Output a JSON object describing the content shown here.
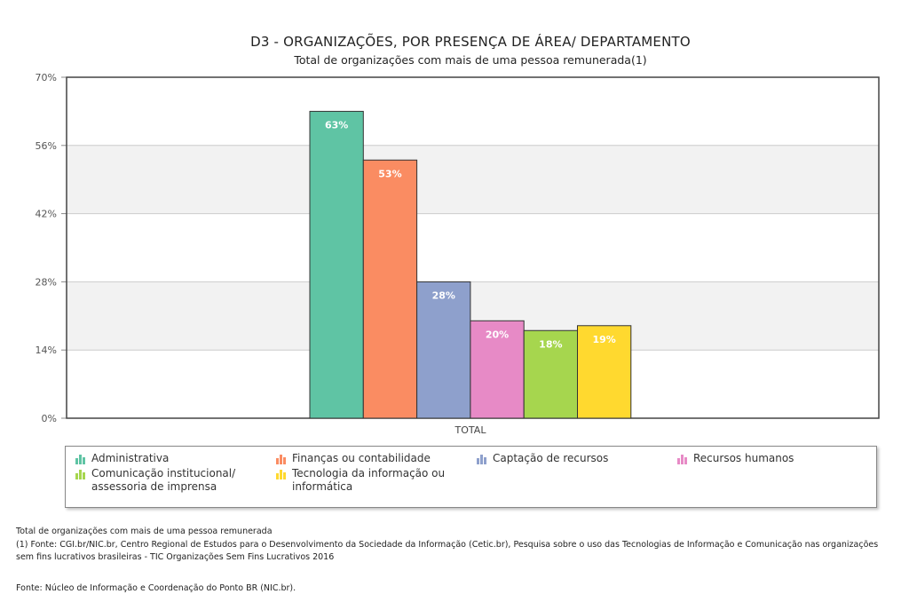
{
  "chart_data": {
    "type": "bar",
    "title": "D3 - ORGANIZAÇÕES, POR PRESENÇA DE ÁREA/ DEPARTAMENTO",
    "subtitle": "Total de organizações com mais de uma pessoa remunerada(1)",
    "categories": [
      "TOTAL"
    ],
    "series": [
      {
        "name": "Administrativa",
        "values": [
          63
        ],
        "label": "63%",
        "color": "#5fc4a4"
      },
      {
        "name": "Finanças ou contabilidade",
        "values": [
          53
        ],
        "label": "53%",
        "color": "#fa8c62"
      },
      {
        "name": "Captação de recursos",
        "values": [
          28
        ],
        "label": "28%",
        "color": "#8ea0cc"
      },
      {
        "name": "Recursos humanos",
        "values": [
          20
        ],
        "label": "20%",
        "color": "#e78ac6"
      },
      {
        "name": "Comunicação institucional/\nassessoria de imprensa",
        "values": [
          18
        ],
        "label": "18%",
        "color": "#a6d64e"
      },
      {
        "name": "Tecnologia da informação ou\ninformática",
        "values": [
          19
        ],
        "label": "19%",
        "color": "#ffd92f"
      }
    ],
    "ylim": [
      0,
      70
    ],
    "yticks": [
      "0%",
      "14%",
      "28%",
      "42%",
      "56%",
      "70%"
    ],
    "ytick_values": [
      0,
      14,
      28,
      42,
      56,
      70
    ],
    "grid": true,
    "legend_position": "bottom"
  },
  "footnotes": {
    "line1": "Total de organizações com mais de uma pessoa remunerada",
    "line2": "(1) Fonte: CGI.br/NIC.br, Centro Regional de Estudos para o Desenvolvimento da Sociedade da Informação (Cetic.br), Pesquisa sobre o uso das Tecnologias de Informação e Comunicação nas organizações sem fins lucrativos brasileiras - TIC Organizações Sem Fins Lucrativos 2016",
    "line3": "Fonte: Núcleo de Informação e Coordenação do Ponto BR (NIC.br)."
  }
}
